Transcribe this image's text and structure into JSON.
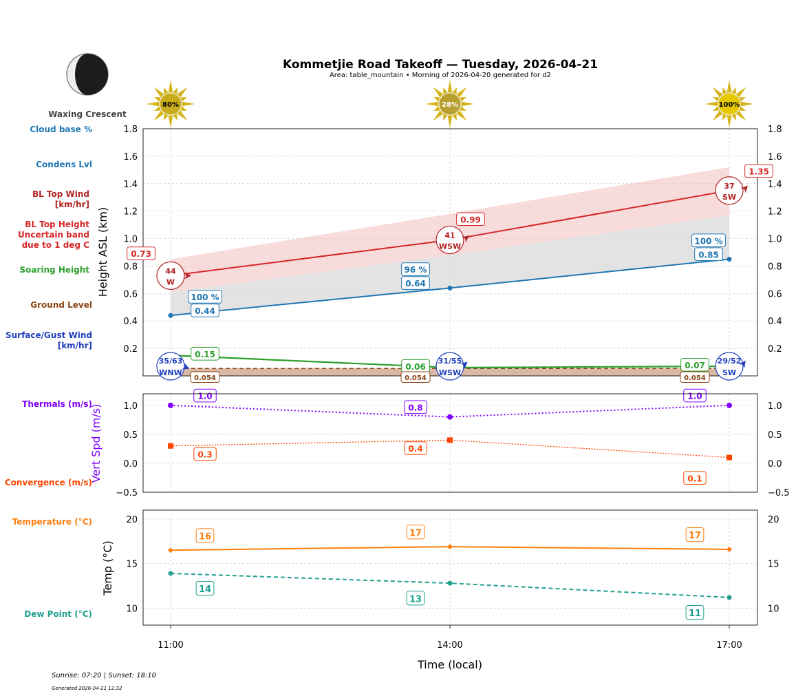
{
  "title": "Kommetjie Road Takeoff — Tuesday, 2026-04-21",
  "subtitle": "Area: table_mountain • Morning of 2026-04-20 generated for d2",
  "moon_phase": "Waxing Crescent",
  "footer": {
    "sun": "Sunrise: 07:20 | Sunset: 18:10",
    "generated": "Generated 2026-04-21 12:32"
  },
  "row_labels": [
    {
      "text": [
        "Cloud base %"
      ],
      "color": "#1f77b4"
    },
    {
      "text": [
        "Condens Lvl"
      ],
      "color": "#1f77b4"
    },
    {
      "text": [
        "BL Top Wind",
        "[km/hr]"
      ],
      "color": "#b22222"
    },
    {
      "text": [
        "BL Top Height",
        "Uncertain band",
        "due to 1 deg C"
      ],
      "color": "#d62728"
    },
    {
      "text": [
        "Soaring Height"
      ],
      "color": "#2ca02c"
    },
    {
      "text": [
        "Ground Level"
      ],
      "color": "#8b4513"
    },
    {
      "text": [
        "Surface/Gust Wind",
        "[km/hr]"
      ],
      "color": "#1f3fbf"
    },
    {
      "text": [
        "Thermals (m/s)"
      ],
      "color": "#7f00ff"
    },
    {
      "text": [
        "Convergence (m/s)"
      ],
      "color": "#ff4500"
    },
    {
      "text": [
        "Temperature (°C)"
      ],
      "color": "#ff7f0e"
    },
    {
      "text": [
        "Dew Point (°C)"
      ],
      "color": "#20a090"
    }
  ],
  "chart_data": [
    {
      "type": "line",
      "ylabel": "Height ASL (km)",
      "ylim": [
        0,
        1.8
      ],
      "yticks": [
        "0.2",
        "0.4",
        "0.6",
        "0.8",
        "1.0",
        "1.2",
        "1.4",
        "1.6",
        "1.8"
      ],
      "x": [
        "11:00",
        "14:00",
        "17:00"
      ],
      "grid": true,
      "sun_percent": [
        "80%",
        "28%",
        "100%"
      ],
      "bl_top": {
        "values": [
          0.73,
          0.99,
          1.35
        ],
        "labels": [
          "0.73",
          "0.99",
          "1.35"
        ],
        "color": "#d62728",
        "band_upper": [
          0.85,
          1.18,
          1.52
        ],
        "band_lower": [
          0.61,
          0.88,
          1.17
        ]
      },
      "bl_wind": {
        "speed": [
          "44",
          "41",
          "37"
        ],
        "dir": [
          "W",
          "WSW",
          "SW"
        ],
        "color": "#b22222"
      },
      "condens": {
        "values": [
          0.44,
          0.64,
          0.85
        ],
        "labels": [
          "0.44",
          "0.64",
          "0.85"
        ],
        "cloud_pct": [
          "100 %",
          "96 %",
          "100 %"
        ],
        "color": "#1f77b4"
      },
      "soaring": {
        "values": [
          0.15,
          0.06,
          0.07
        ],
        "labels": [
          "0.15",
          "0.06",
          "0.07"
        ],
        "color": "#2ca02c"
      },
      "ground": {
        "values": [
          0.054,
          0.054,
          0.054
        ],
        "labels": [
          "0.054",
          "0.054",
          "0.054"
        ],
        "color": "#8b4513"
      },
      "surface_wind": {
        "speed": [
          "35/63",
          "31/55",
          "29/52"
        ],
        "dir": [
          "WNW",
          "WSW",
          "SW"
        ],
        "color": "#1f3fbf"
      }
    },
    {
      "type": "line",
      "ylabel": "Vert Spd (m/s)",
      "ylim": [
        -0.5,
        1.2
      ],
      "yticks": [
        "−0.5",
        "0.0",
        "0.5",
        "1.0"
      ],
      "x": [
        "11:00",
        "14:00",
        "17:00"
      ],
      "series": [
        {
          "key": "thermals",
          "values": [
            1.0,
            0.8,
            1.0
          ],
          "labels": [
            "1.0",
            "0.8",
            "1.0"
          ],
          "color": "#7f00ff"
        },
        {
          "key": "convergence",
          "values": [
            0.3,
            0.4,
            0.1
          ],
          "labels": [
            "0.3",
            "0.4",
            "0.1"
          ],
          "color": "#ff4500"
        }
      ]
    },
    {
      "type": "line",
      "ylabel": "Temp (°C)",
      "xlabel": "Time (local)",
      "ylim": [
        8.1,
        21
      ],
      "yticks": [
        "10",
        "15",
        "20"
      ],
      "x": [
        "11:00",
        "14:00",
        "17:00"
      ],
      "series": [
        {
          "key": "temperature",
          "values": [
            16.5,
            16.9,
            16.6
          ],
          "labels": [
            "16",
            "17",
            "17"
          ],
          "color": "#ff7f0e"
        },
        {
          "key": "dewpoint",
          "values": [
            13.9,
            12.8,
            11.2
          ],
          "labels": [
            "14",
            "13",
            "11"
          ],
          "color": "#20a090"
        }
      ]
    }
  ]
}
